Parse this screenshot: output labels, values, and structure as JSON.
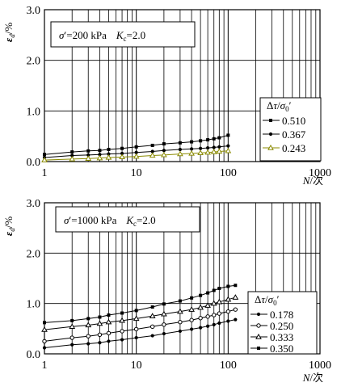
{
  "chart_data": [
    {
      "type": "line",
      "note": {
        "prefix": "σ",
        "sup": "′",
        "mid": "=200 kPa",
        "k": "K",
        "ksub": "c",
        "kval": "=2.0"
      },
      "xlabel": {
        "main": "N",
        "suffix": "/次"
      },
      "ylabel": {
        "main": "ε",
        "sub": "d",
        "suffix": "/%"
      },
      "xscale": "log",
      "xlim": [
        1,
        1000
      ],
      "ylim": [
        0,
        3.0
      ],
      "x_ticks": [
        "1",
        "10",
        "100",
        "1000"
      ],
      "y_ticks": [
        "0.0",
        "1.0",
        "2.0",
        "3.0"
      ],
      "grid": true,
      "legend": {
        "title_parts": [
          "Δ",
          "τ",
          "/",
          "σ",
          "0",
          "′"
        ],
        "position": "lower-right"
      },
      "series": [
        {
          "name": "0.510",
          "marker": "square",
          "color": "#000000",
          "x": [
            1,
            2,
            3,
            4,
            5,
            7,
            10,
            15,
            20,
            30,
            40,
            50,
            60,
            70,
            80,
            100
          ],
          "y": [
            0.14,
            0.19,
            0.21,
            0.22,
            0.24,
            0.26,
            0.29,
            0.32,
            0.35,
            0.37,
            0.39,
            0.41,
            0.43,
            0.45,
            0.47,
            0.52
          ]
        },
        {
          "name": "0.367",
          "marker": "circle",
          "color": "#000000",
          "x": [
            1,
            2,
            3,
            4,
            5,
            7,
            10,
            15,
            20,
            30,
            40,
            50,
            60,
            70,
            80,
            100
          ],
          "y": [
            0.08,
            0.12,
            0.13,
            0.14,
            0.15,
            0.16,
            0.18,
            0.2,
            0.22,
            0.24,
            0.25,
            0.26,
            0.27,
            0.28,
            0.29,
            0.31
          ]
        },
        {
          "name": "0.243",
          "marker": "triangle",
          "color": "#8a8a00",
          "x": [
            1,
            2,
            3,
            4,
            5,
            7,
            10,
            15,
            20,
            30,
            40,
            50,
            60,
            70,
            80,
            100
          ],
          "y": [
            0.03,
            0.05,
            0.06,
            0.07,
            0.08,
            0.09,
            0.1,
            0.12,
            0.13,
            0.15,
            0.16,
            0.17,
            0.18,
            0.19,
            0.2,
            0.21
          ]
        }
      ]
    },
    {
      "type": "line",
      "note": {
        "prefix": "σ",
        "sup": "′",
        "mid": "=1000 kPa",
        "k": "K",
        "ksub": "c",
        "kval": "=2.0"
      },
      "xlabel": {
        "main": "N",
        "suffix": "/次"
      },
      "ylabel": {
        "main": "ε",
        "sub": "d",
        "suffix": "/%"
      },
      "xscale": "log",
      "xlim": [
        1,
        1000
      ],
      "ylim": [
        0,
        3.0
      ],
      "x_ticks": [
        "1",
        "10",
        "100",
        "1000"
      ],
      "y_ticks": [
        "0.0",
        "1.0",
        "2.0",
        "3.0"
      ],
      "grid": true,
      "legend": {
        "title_parts": [
          "Δ",
          "τ",
          "/",
          "σ",
          "0",
          "′"
        ],
        "position": "lower-right"
      },
      "series": [
        {
          "name": "0.178",
          "marker": "circle",
          "color": "#000000",
          "x": [
            1,
            2,
            3,
            4,
            5,
            7,
            10,
            15,
            20,
            30,
            40,
            50,
            60,
            70,
            80,
            100,
            120
          ],
          "y": [
            0.12,
            0.18,
            0.2,
            0.22,
            0.25,
            0.28,
            0.32,
            0.36,
            0.4,
            0.45,
            0.49,
            0.52,
            0.55,
            0.58,
            0.61,
            0.65,
            0.68
          ]
        },
        {
          "name": "0.250",
          "marker": "circle-open",
          "color": "#000000",
          "x": [
            1,
            2,
            3,
            4,
            5,
            7,
            10,
            15,
            20,
            30,
            40,
            50,
            60,
            70,
            80,
            100,
            120
          ],
          "y": [
            0.25,
            0.32,
            0.35,
            0.38,
            0.41,
            0.45,
            0.49,
            0.54,
            0.58,
            0.63,
            0.67,
            0.71,
            0.74,
            0.77,
            0.8,
            0.84,
            0.88
          ]
        },
        {
          "name": "0.333",
          "marker": "triangle",
          "color": "#000000",
          "x": [
            1,
            2,
            3,
            4,
            5,
            7,
            10,
            15,
            20,
            30,
            40,
            50,
            60,
            70,
            80,
            100,
            120
          ],
          "y": [
            0.48,
            0.54,
            0.57,
            0.6,
            0.63,
            0.66,
            0.7,
            0.75,
            0.79,
            0.84,
            0.88,
            0.92,
            0.96,
            1.0,
            1.03,
            1.08,
            1.12
          ]
        },
        {
          "name": "0.350",
          "marker": "square",
          "color": "#000000",
          "x": [
            1,
            2,
            3,
            4,
            5,
            7,
            10,
            15,
            20,
            30,
            40,
            50,
            60,
            70,
            80,
            100,
            120
          ],
          "y": [
            0.62,
            0.66,
            0.7,
            0.73,
            0.77,
            0.81,
            0.86,
            0.93,
            0.99,
            1.05,
            1.11,
            1.16,
            1.21,
            1.26,
            1.3,
            1.34,
            1.36
          ]
        }
      ]
    }
  ]
}
